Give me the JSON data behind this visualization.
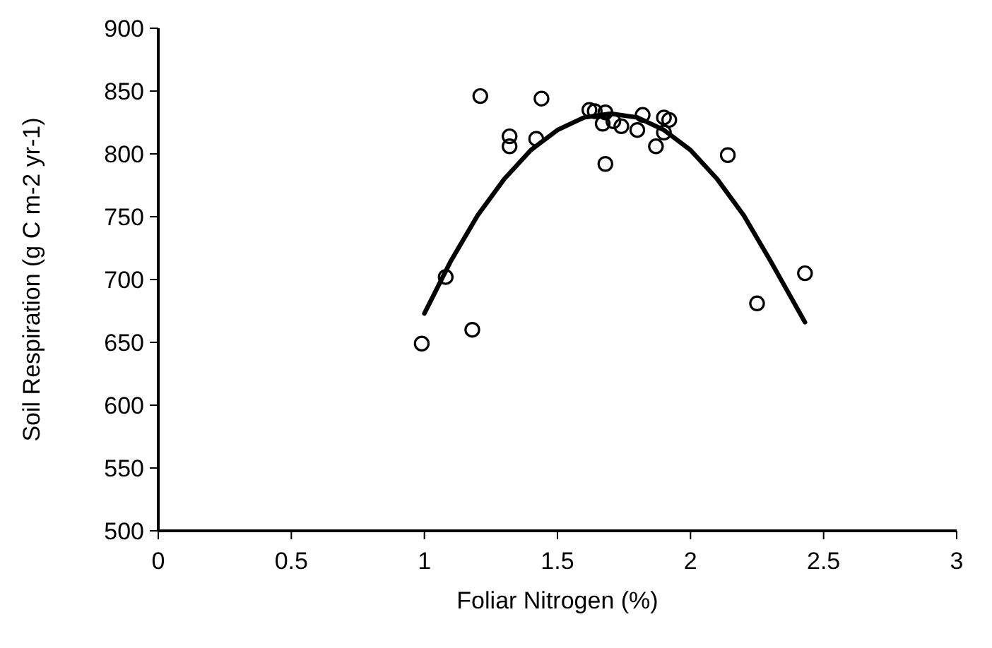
{
  "chart_data": {
    "type": "scatter",
    "xlabel": "Foliar Nitrogen (%)",
    "ylabel": "Soil Respiration (g C m-2 yr-1)",
    "xlim": [
      0,
      3
    ],
    "xticks": [
      0,
      0.5,
      1,
      1.5,
      2,
      2.5,
      3
    ],
    "ylim": [
      500,
      900
    ],
    "yticks": [
      500,
      550,
      600,
      650,
      700,
      750,
      800,
      850,
      900
    ],
    "grid": false,
    "series": [
      {
        "marker": "circle",
        "color": "#000000",
        "x": [
          0.99,
          1.08,
          1.18,
          1.21,
          1.32,
          1.32,
          1.42,
          1.44,
          1.62,
          1.64,
          1.67,
          1.68,
          1.68,
          1.71,
          1.74,
          1.8,
          1.82,
          1.87,
          1.9,
          1.9,
          1.92,
          2.14,
          2.25,
          2.43
        ],
        "values": [
          649,
          702,
          660,
          846,
          814,
          806,
          812,
          844,
          835,
          834,
          824,
          833,
          792,
          826,
          822,
          819,
          831,
          806,
          829,
          817,
          827,
          799,
          681,
          705
        ]
      },
      {
        "type": "line",
        "line_style": "solid",
        "color": "#000000",
        "x": [
          1.0,
          1.1,
          1.2,
          1.3,
          1.4,
          1.5,
          1.6,
          1.7,
          1.8,
          1.9,
          2.0,
          2.1,
          2.2,
          2.3,
          2.43
        ],
        "values": [
          673,
          715,
          751,
          780,
          803,
          819,
          829,
          832,
          829,
          819,
          803,
          780,
          751,
          715,
          666
        ]
      }
    ]
  }
}
